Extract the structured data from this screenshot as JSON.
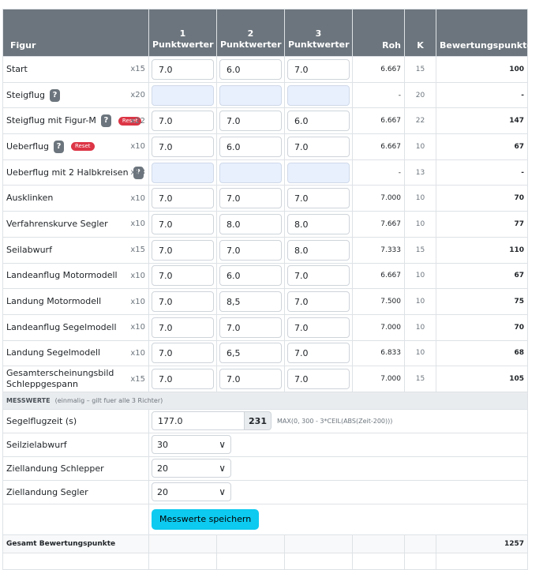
{
  "header": {
    "figur": "Figur",
    "judges": [
      {
        "num": "1",
        "label": "Punktwerter"
      },
      {
        "num": "2",
        "label": "Punktwerter"
      },
      {
        "num": "3",
        "label": "Punktwerter"
      }
    ],
    "roh": "Roh",
    "k": "K",
    "bewertung": "Bewertungspunkte"
  },
  "figures": [
    {
      "name": "Start",
      "help": false,
      "reset": false,
      "mult": "x15",
      "v": [
        "7.0",
        "6.0",
        "7.0"
      ],
      "roh": "6.667",
      "k": "15",
      "bp": "100"
    },
    {
      "name": "Steigflug",
      "help": true,
      "reset": false,
      "mult": "x20",
      "v": [
        "",
        "",
        ""
      ],
      "roh": "-",
      "k": "20",
      "bp": "-"
    },
    {
      "name": "Steigflug mit Figur-M",
      "help": true,
      "reset": true,
      "mult": "x22",
      "v": [
        "7.0",
        "7.0",
        "6.0"
      ],
      "roh": "6.667",
      "k": "22",
      "bp": "147"
    },
    {
      "name": "Ueberflug",
      "help": true,
      "reset": true,
      "mult": "x10",
      "v": [
        "7.0",
        "6.0",
        "7.0"
      ],
      "roh": "6.667",
      "k": "10",
      "bp": "67"
    },
    {
      "name": "Ueberflug mit 2 Halbkreisen",
      "help": true,
      "reset": false,
      "mult": "x13",
      "v": [
        "",
        "",
        ""
      ],
      "roh": "-",
      "k": "13",
      "bp": "-"
    },
    {
      "name": "Ausklinken",
      "help": false,
      "reset": false,
      "mult": "x10",
      "v": [
        "7.0",
        "7.0",
        "7.0"
      ],
      "roh": "7.000",
      "k": "10",
      "bp": "70"
    },
    {
      "name": "Verfahrenskurve Segler",
      "help": false,
      "reset": false,
      "mult": "x10",
      "v": [
        "7.0",
        "8.0",
        "8.0"
      ],
      "roh": "7.667",
      "k": "10",
      "bp": "77"
    },
    {
      "name": "Seilabwurf",
      "help": false,
      "reset": false,
      "mult": "x15",
      "v": [
        "7.0",
        "7.0",
        "8.0"
      ],
      "roh": "7.333",
      "k": "15",
      "bp": "110"
    },
    {
      "name": "Landeanflug Motormodell",
      "help": false,
      "reset": false,
      "mult": "x10",
      "v": [
        "7.0",
        "6.0",
        "7.0"
      ],
      "roh": "6.667",
      "k": "10",
      "bp": "67"
    },
    {
      "name": "Landung Motormodell",
      "help": false,
      "reset": false,
      "mult": "x10",
      "v": [
        "7.0",
        "8,5",
        "7.0"
      ],
      "roh": "7.500",
      "k": "10",
      "bp": "75"
    },
    {
      "name": "Landeanflug Segelmodell",
      "help": false,
      "reset": false,
      "mult": "x10",
      "v": [
        "7.0",
        "7.0",
        "7.0"
      ],
      "roh": "7.000",
      "k": "10",
      "bp": "70"
    },
    {
      "name": "Landung Segelmodell",
      "help": false,
      "reset": false,
      "mult": "x10",
      "v": [
        "7.0",
        "6,5",
        "7.0"
      ],
      "roh": "6.833",
      "k": "10",
      "bp": "68"
    },
    {
      "name": "Gesamterscheinungsbild Schleppgespann",
      "help": false,
      "reset": false,
      "mult": "x15",
      "v": [
        "7.0",
        "7.0",
        "7.0"
      ],
      "roh": "7.000",
      "k": "15",
      "bp": "105"
    }
  ],
  "labels": {
    "help_glyph": "?",
    "reset": "Reset"
  },
  "messwerte": {
    "title": "MESSWERTE",
    "note": "(einmalig – gilt fuer alle 3 Richter)",
    "segelflugzeit_label": "Segelflugzeit (s)",
    "segelflugzeit_value": "177.0",
    "segelflugzeit_result": "231",
    "formula": "MAX(0, 300 - 3*CEIL(ABS(Zeit-200)))",
    "seilzielabwurf_label": "Seilzielabwurf",
    "seilzielabwurf_value": "30",
    "ziel_schlepper_label": "Ziellandung Schlepper",
    "ziel_schlepper_value": "20",
    "ziel_segler_label": "Ziellandung Segler",
    "ziel_segler_value": "20",
    "save_button": "Messwerte speichern"
  },
  "total": {
    "label": "Gesamt Bewertungspunkte",
    "value": "1257"
  }
}
